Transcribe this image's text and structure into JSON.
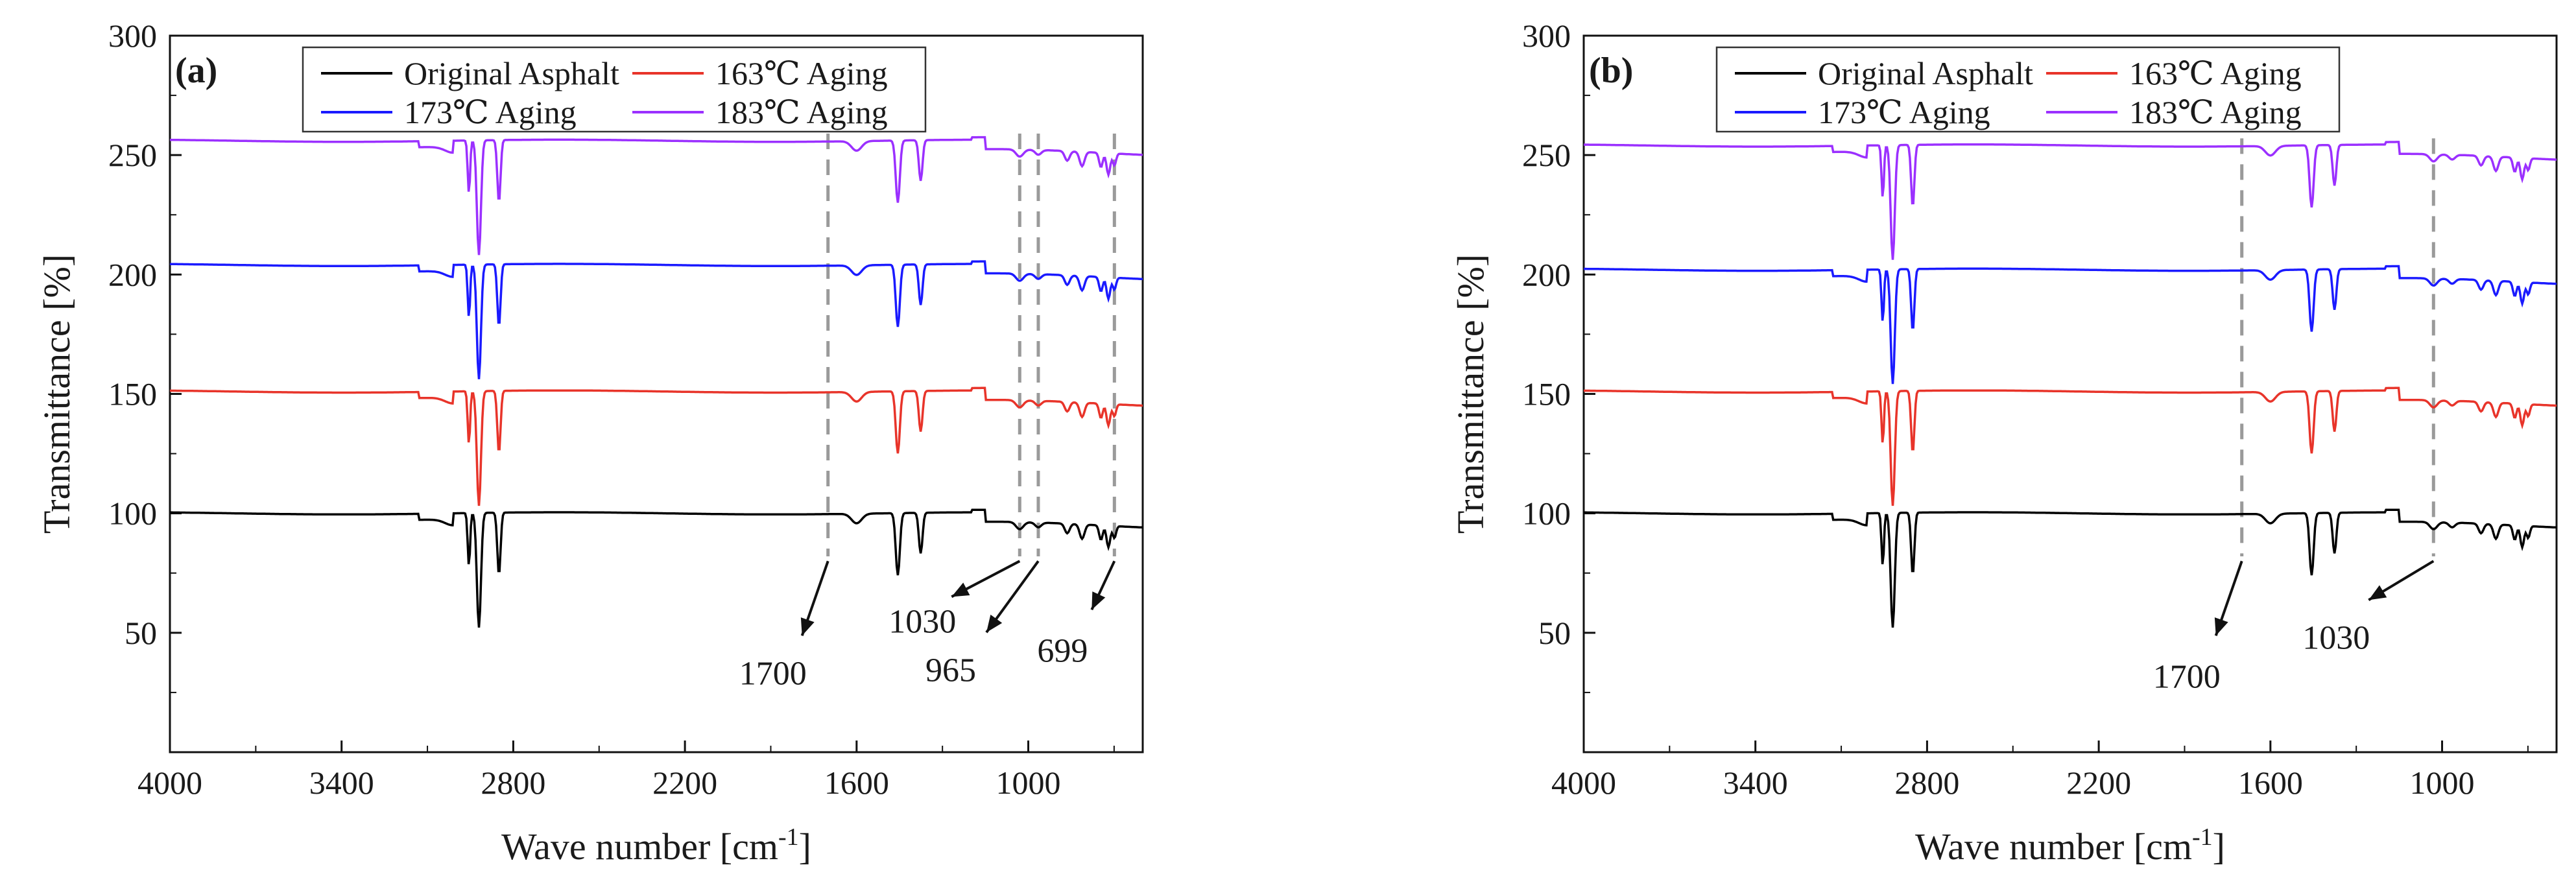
{
  "chart_data": [
    {
      "type": "line",
      "panel_label": "(a)",
      "xlabel": "Wave number [cm",
      "xlabel_sup": "-1",
      "xlabel_tail": "]",
      "ylabel": "Transmittance [%]",
      "xlim": [
        4000,
        600
      ],
      "ylim": [
        0,
        300
      ],
      "x_reversed": true,
      "x_ticks": [
        4000,
        3400,
        2800,
        2200,
        1600,
        1000
      ],
      "y_ticks": [
        50,
        100,
        150,
        200,
        250,
        300
      ],
      "legend": {
        "placement": "top",
        "columns": 2
      },
      "grid": false,
      "series": [
        {
          "name": "Original Asphalt",
          "color": "#000000",
          "offset": 100
        },
        {
          "name": "163℃ Aging",
          "color": "#e8342a",
          "offset": 151
        },
        {
          "name": "173℃ Aging",
          "color": "#1a1aff",
          "offset": 204
        },
        {
          "name": "183℃ Aging",
          "color": "#9b30ff",
          "offset": 256
        }
      ],
      "annotations": [
        {
          "text": "1700",
          "x": 1700
        },
        {
          "text": "1030",
          "x": 1030
        },
        {
          "text": "965",
          "x": 965
        },
        {
          "text": "699",
          "x": 699
        }
      ]
    },
    {
      "type": "line",
      "panel_label": "(b)",
      "xlabel": "Wave number [cm",
      "xlabel_sup": "-1",
      "xlabel_tail": "]",
      "ylabel": "Transmittance [%]",
      "xlim": [
        4000,
        600
      ],
      "ylim": [
        0,
        300
      ],
      "x_reversed": true,
      "x_ticks": [
        4000,
        3400,
        2800,
        2200,
        1600,
        1000
      ],
      "y_ticks": [
        50,
        100,
        150,
        200,
        250,
        300
      ],
      "legend": {
        "placement": "top",
        "columns": 2
      },
      "grid": false,
      "series": [
        {
          "name": "Original Asphalt",
          "color": "#000000",
          "offset": 100
        },
        {
          "name": "163℃ Aging",
          "color": "#e8342a",
          "offset": 151
        },
        {
          "name": "173℃ Aging",
          "color": "#1a1aff",
          "offset": 202
        },
        {
          "name": "183℃ Aging",
          "color": "#9b30ff",
          "offset": 254
        }
      ],
      "annotations": [
        {
          "text": "1700",
          "x": 1700
        },
        {
          "text": "1030",
          "x": 1030
        }
      ]
    }
  ]
}
